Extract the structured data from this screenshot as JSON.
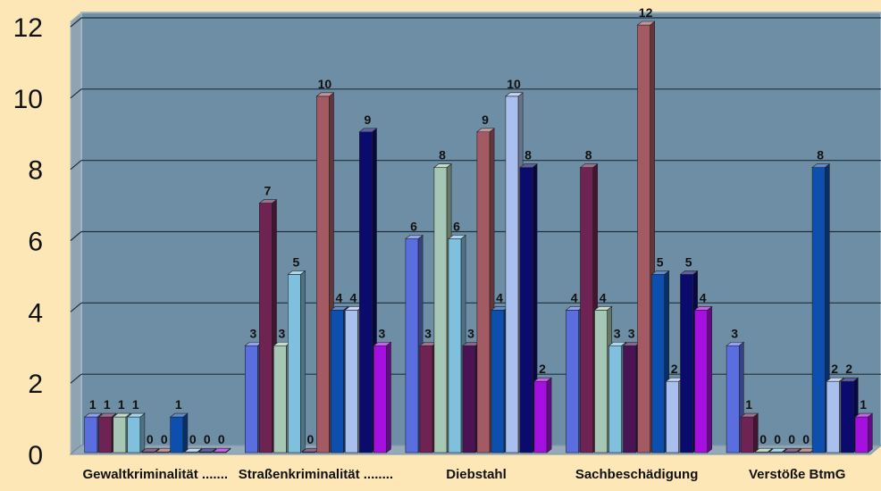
{
  "chart_data": {
    "type": "bar",
    "title": "",
    "xlabel": "",
    "ylabel": "",
    "ylim": [
      0,
      12
    ],
    "yticks": [
      0,
      2,
      4,
      6,
      8,
      10,
      12
    ],
    "grid": true,
    "legend": "none",
    "categories": [
      "Gewaltkriminalität .......",
      "Straßenkriminalität ........",
      "Diebstahl",
      "Sachbeschädigung",
      "Verstöße  BtmG"
    ],
    "series": [
      {
        "color": "#5a6ee0",
        "values": [
          1,
          3,
          6,
          4,
          3
        ]
      },
      {
        "color": "#6e2352",
        "values": [
          1,
          7,
          3,
          8,
          1
        ]
      },
      {
        "color": "#a6c7b3",
        "values": [
          1,
          3,
          8,
          4,
          0
        ]
      },
      {
        "color": "#7fc0de",
        "values": [
          1,
          5,
          6,
          3,
          0
        ]
      },
      {
        "color": "#4a1454",
        "values": [
          0,
          0,
          3,
          3,
          0
        ]
      },
      {
        "color": "#a35a63",
        "values": [
          0,
          10,
          9,
          12,
          0
        ]
      },
      {
        "color": "#0d4fae",
        "values": [
          1,
          4,
          4,
          5,
          8
        ]
      },
      {
        "color": "#a9bfee",
        "values": [
          0,
          4,
          10,
          2,
          2
        ]
      },
      {
        "color": "#0b0b6e",
        "values": [
          0,
          9,
          8,
          5,
          2
        ]
      },
      {
        "color": "#a510e0",
        "values": [
          0,
          3,
          2,
          4,
          1
        ]
      }
    ]
  }
}
